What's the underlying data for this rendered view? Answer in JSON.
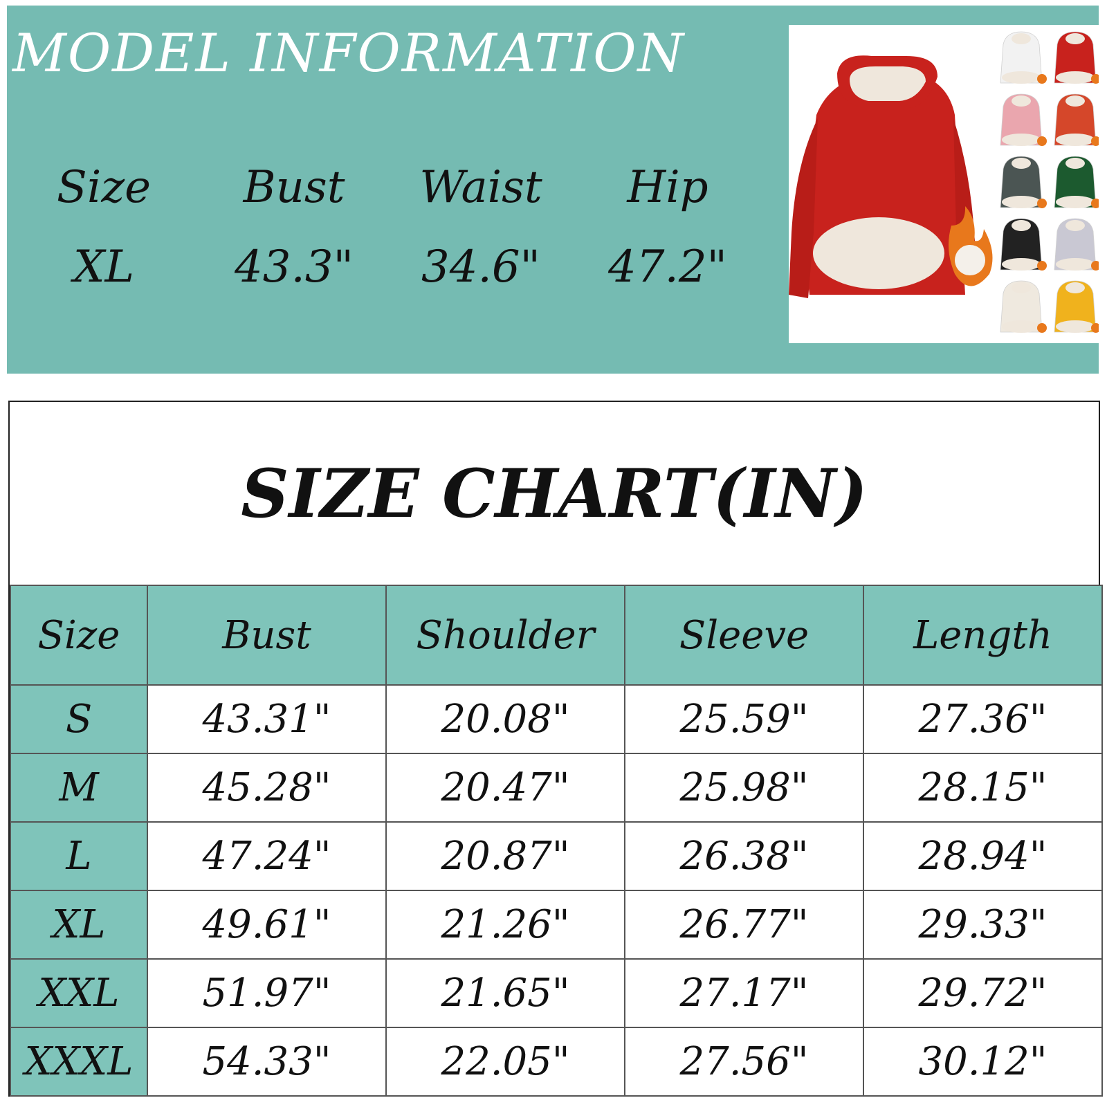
{
  "model": {
    "title": "MODEL INFORMATION",
    "headers": [
      "Size",
      "Bust",
      "Waist",
      "Hip"
    ],
    "values": [
      "XL",
      "43.3\"",
      "34.6\"",
      "47.2\""
    ]
  },
  "size_chart": {
    "title": "SIZE CHART(IN)",
    "headers": [
      "Size",
      "Bust",
      "Shoulder",
      "Sleeve",
      "Length"
    ],
    "rows": [
      [
        "S",
        "43.31\"",
        "20.08\"",
        "25.59\"",
        "27.36\""
      ],
      [
        "M",
        "45.28\"",
        "20.47\"",
        "25.98\"",
        "28.15\""
      ],
      [
        "L",
        "47.24\"",
        "20.87\"",
        "26.38\"",
        "28.94\""
      ],
      [
        "XL",
        "49.61\"",
        "21.26\"",
        "26.77\"",
        "29.33\""
      ],
      [
        "XXL",
        "51.97\"",
        "21.65\"",
        "27.17\"",
        "29.72\""
      ],
      [
        "XXXL",
        "54.33\"",
        "22.05\"",
        "27.56\"",
        "30.12\""
      ]
    ]
  },
  "product": {
    "main_color": "#c8221d",
    "lining_color": "#efe7dc",
    "swatches": [
      "#f2f2f2",
      "#c8221d",
      "#eaa6ae",
      "#d5472a",
      "#4b5553",
      "#1c5a2f",
      "#222222",
      "#c9c8d3",
      "#efe9df",
      "#f0b21d"
    ]
  },
  "colors": {
    "teal_panel": "#75bbb2",
    "teal_cell": "#7fc4ba"
  }
}
